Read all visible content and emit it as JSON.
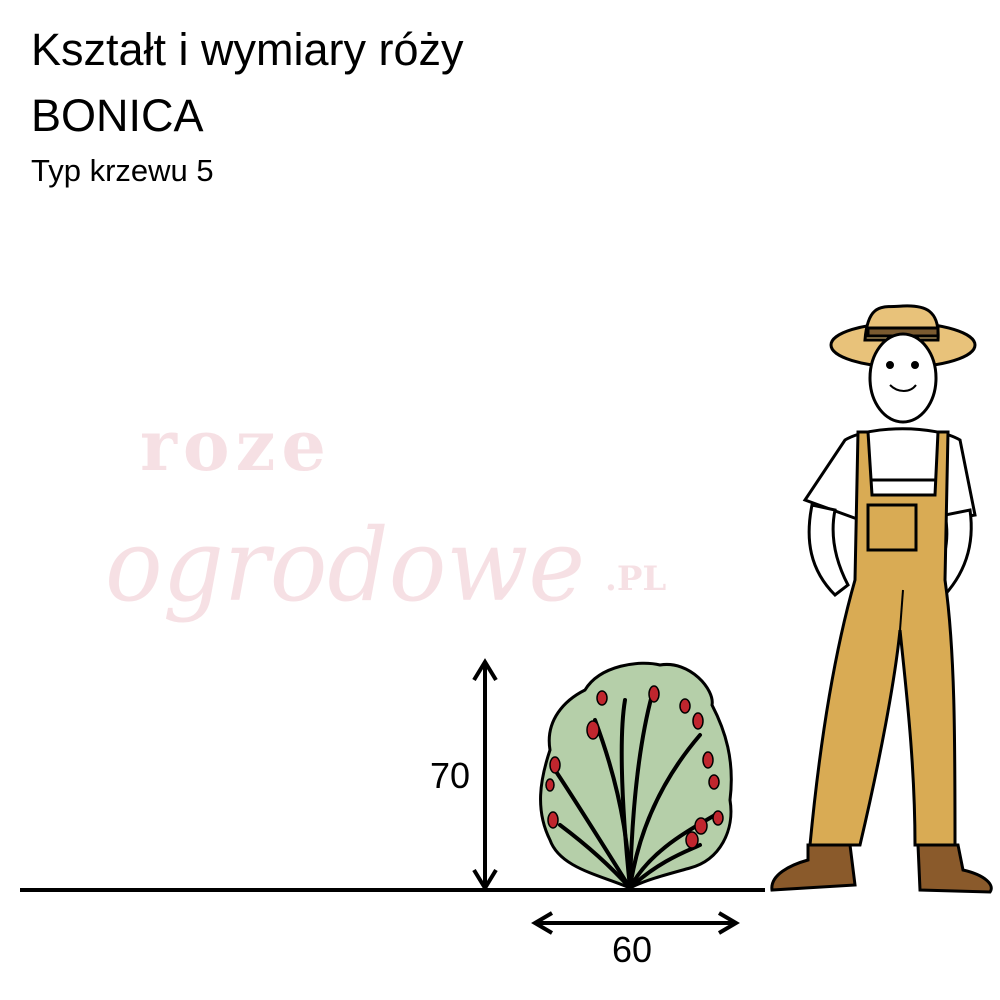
{
  "header": {
    "title": "Kształt i wymiary róży",
    "variety": "BONICA",
    "shrub_type": "Typ krzewu 5"
  },
  "dimensions": {
    "height_label": "70",
    "width_label": "60"
  },
  "watermark": {
    "line1": "roze",
    "line2": "ogrodowe",
    "suffix": ".PL"
  },
  "colors": {
    "bush_fill": "#b5cfa9",
    "bloom": "#c0262e",
    "overalls": "#d9ab54",
    "hat": "#e8c27a",
    "watermark": "#f0c8cf"
  }
}
